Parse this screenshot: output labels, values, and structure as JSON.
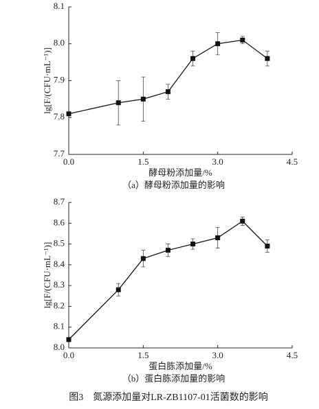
{
  "caption": "图3　氮源添加量对LR-ZB1107-01活菌数的影响",
  "chart_data": [
    {
      "type": "line",
      "subcaption": "（a）酵母粉添加量的影响",
      "x_label": "酵母粉添加量/%",
      "y_label": "lg[F/(CFU·mL⁻¹)]",
      "x": [
        0,
        1,
        1.5,
        2,
        2.5,
        3,
        3.5,
        4
      ],
      "series": [
        {
          "color": "#111111",
          "values": [
            7.81,
            7.84,
            7.85,
            7.87,
            7.96,
            8.0,
            8.01,
            7.96
          ],
          "errors": [
            0,
            0.06,
            0.06,
            0.02,
            0.02,
            0.03,
            0.01,
            0.02
          ]
        }
      ],
      "xlim": [
        0,
        4.5
      ],
      "xticks": [
        {
          "value": 0,
          "label": "0.0"
        },
        1.5,
        {
          "value": 3,
          "label": "3.0"
        },
        4.5
      ],
      "ylim": [
        7.7,
        8.1
      ],
      "yticks": [
        7.7,
        7.8,
        7.9,
        {
          "value": 8,
          "label": "8.0"
        },
        8.1
      ]
    },
    {
      "type": "line",
      "subcaption": "（b）蛋白胨添加量的影响",
      "x_label": "蛋白胨添加量/%",
      "y_label": "lg[F/(CFU·mL⁻¹)]",
      "x": [
        0,
        1,
        1.5,
        2,
        2.5,
        3,
        3.5,
        4
      ],
      "series": [
        {
          "color": "#111111",
          "values": [
            8.04,
            8.28,
            8.43,
            8.47,
            8.5,
            8.53,
            8.61,
            8.49
          ],
          "errors": [
            0,
            0.03,
            0.04,
            0.03,
            0.025,
            0.05,
            0.02,
            0.03
          ]
        }
      ],
      "xlim": [
        0,
        4.5
      ],
      "xticks": [
        {
          "value": 0,
          "label": "0.0"
        },
        1.5,
        {
          "value": 3,
          "label": "3.0"
        },
        4.5
      ],
      "ylim": [
        8.0,
        8.7
      ],
      "yticks": [
        {
          "value": 8,
          "label": "8.0"
        },
        8.1,
        8.2,
        8.3,
        8.4,
        8.5,
        8.6,
        8.7
      ]
    }
  ]
}
